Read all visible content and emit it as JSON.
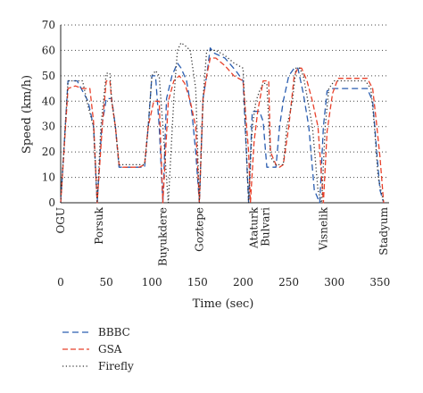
{
  "chart_data": {
    "type": "line",
    "xlabel": "Time (sec)",
    "ylabel": "Speed (km/h)",
    "xlim": [
      0,
      360
    ],
    "ylim": [
      0,
      70
    ],
    "xticks": [
      0,
      50,
      100,
      150,
      200,
      250,
      300,
      350
    ],
    "yticks": [
      0,
      10,
      20,
      30,
      40,
      50,
      60,
      70
    ],
    "grid": "horizontal dotted",
    "legend_position": "bottom-left",
    "stops": [
      {
        "name": "OGU",
        "x": 0
      },
      {
        "name": "Porsuk",
        "x": 42
      },
      {
        "name": "Buyukdere",
        "x": 112
      },
      {
        "name": "Goztepe",
        "x": 152
      },
      {
        "name": "Ataturk Bulvari",
        "x": 212
      },
      {
        "name": "Visnelik",
        "x": 288
      },
      {
        "name": "Stadyum",
        "x": 354
      }
    ],
    "series": [
      {
        "name": "BBBC",
        "color": "#2a5db0",
        "dash": "long-dash",
        "x": [
          0,
          8,
          18,
          24,
          30,
          36,
          40,
          45,
          50,
          56,
          60,
          64,
          68,
          82,
          86,
          92,
          96,
          100,
          104,
          108,
          112,
          116,
          122,
          128,
          132,
          138,
          144,
          148,
          152,
          156,
          160,
          164,
          168,
          180,
          192,
          200,
          206,
          210,
          214,
          218,
          222,
          226,
          232,
          236,
          240,
          244,
          250,
          256,
          260,
          266,
          272,
          278,
          284,
          288,
          292,
          298,
          302,
          308,
          318,
          324,
          330,
          336,
          342,
          346,
          350,
          354
        ],
        "y": [
          0,
          48,
          48,
          44,
          40,
          30,
          0,
          30,
          41,
          41,
          30,
          14,
          14,
          14,
          14,
          14,
          30,
          50,
          50,
          30,
          0,
          41,
          50,
          55,
          53,
          48,
          35,
          20,
          0,
          41,
          50,
          61,
          59,
          57,
          52,
          48,
          0,
          36,
          36,
          36,
          32,
          14,
          14,
          14,
          30,
          40,
          50,
          53,
          53,
          43,
          30,
          5,
          0,
          30,
          44,
          45,
          45,
          45,
          45,
          45,
          45,
          45,
          40,
          22,
          5,
          0
        ]
      },
      {
        "name": "GSA",
        "color": "#e8402a",
        "dash": "short-dash",
        "x": [
          0,
          8,
          16,
          24,
          32,
          36,
          40,
          46,
          50,
          54,
          56,
          60,
          64,
          68,
          82,
          86,
          92,
          96,
          102,
          108,
          112,
          118,
          124,
          130,
          136,
          142,
          148,
          152,
          156,
          160,
          164,
          170,
          180,
          190,
          200,
          206,
          208,
          212,
          216,
          222,
          228,
          230,
          236,
          240,
          244,
          250,
          256,
          260,
          264,
          270,
          276,
          282,
          288,
          292,
          298,
          304,
          308,
          318,
          326,
          332,
          336,
          342,
          346,
          350,
          354
        ],
        "y": [
          0,
          45,
          46,
          45,
          45,
          32,
          0,
          32,
          48,
          48,
          40,
          30,
          15,
          14,
          14,
          14,
          15,
          30,
          40,
          40,
          0,
          40,
          48,
          50,
          47,
          40,
          30,
          0,
          41,
          50,
          57,
          57,
          54,
          50,
          48,
          20,
          0,
          24,
          36,
          48,
          48,
          20,
          15,
          14,
          15,
          30,
          50,
          53,
          53,
          48,
          40,
          30,
          0,
          28,
          43,
          49,
          49,
          49,
          49,
          49,
          49,
          45,
          32,
          18,
          0
        ]
      },
      {
        "name": "Firefly",
        "color": "#333333",
        "dash": "dotted",
        "x": [
          0,
          8,
          20,
          24,
          30,
          36,
          40,
          44,
          50,
          54,
          56,
          60,
          64,
          68,
          82,
          86,
          92,
          96,
          100,
          104,
          108,
          112,
          118,
          124,
          128,
          132,
          136,
          142,
          148,
          152,
          156,
          160,
          164,
          170,
          180,
          190,
          200,
          206,
          210,
          214,
          218,
          222,
          226,
          230,
          236,
          240,
          244,
          248,
          254,
          258,
          262,
          266,
          270,
          276,
          282,
          286,
          290,
          294,
          300,
          308,
          318,
          324,
          330,
          334,
          340,
          344,
          348,
          354
        ],
        "y": [
          0,
          48,
          48,
          48,
          38,
          30,
          0,
          30,
          51,
          51,
          40,
          30,
          15,
          15,
          15,
          15,
          15,
          30,
          50,
          52,
          50,
          30,
          0,
          41,
          60,
          63,
          62,
          60,
          45,
          0,
          41,
          60,
          60,
          60,
          58,
          55,
          53,
          0,
          30,
          40,
          44,
          47,
          47,
          18,
          15,
          15,
          15,
          30,
          40,
          53,
          53,
          50,
          42,
          30,
          5,
          0,
          30,
          45,
          48,
          48,
          48,
          48,
          48,
          48,
          45,
          30,
          10,
          0
        ]
      }
    ]
  }
}
